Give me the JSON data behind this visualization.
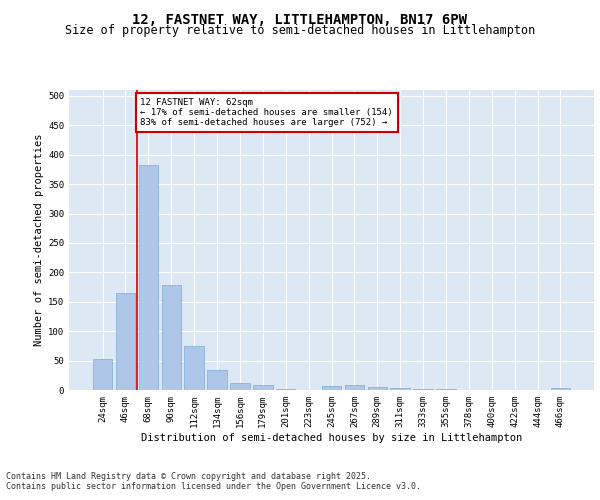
{
  "title": "12, FASTNET WAY, LITTLEHAMPTON, BN17 6PW",
  "subtitle": "Size of property relative to semi-detached houses in Littlehampton",
  "xlabel": "Distribution of semi-detached houses by size in Littlehampton",
  "ylabel": "Number of semi-detached properties",
  "categories": [
    "24sqm",
    "46sqm",
    "68sqm",
    "90sqm",
    "112sqm",
    "134sqm",
    "156sqm",
    "179sqm",
    "201sqm",
    "223sqm",
    "245sqm",
    "267sqm",
    "289sqm",
    "311sqm",
    "333sqm",
    "355sqm",
    "378sqm",
    "400sqm",
    "422sqm",
    "444sqm",
    "466sqm"
  ],
  "values": [
    52,
    165,
    383,
    178,
    75,
    34,
    12,
    8,
    2,
    0,
    7,
    8,
    5,
    4,
    2,
    1,
    0,
    0,
    0,
    0,
    3
  ],
  "bar_color": "#aec6e8",
  "bar_edge_color": "#7aadd4",
  "vline_color": "#cc0000",
  "vline_x": 1.5,
  "annotation_text": "12 FASTNET WAY: 62sqm\n← 17% of semi-detached houses are smaller (154)\n83% of semi-detached houses are larger (752) →",
  "annotation_box_color": "#ffffff",
  "annotation_box_edge": "#cc0000",
  "footer_line1": "Contains HM Land Registry data © Crown copyright and database right 2025.",
  "footer_line2": "Contains public sector information licensed under the Open Government Licence v3.0.",
  "ylim": [
    0,
    510
  ],
  "yticks": [
    0,
    50,
    100,
    150,
    200,
    250,
    300,
    350,
    400,
    450,
    500
  ],
  "plot_bg_color": "#dde8f5",
  "fig_bg_color": "#ffffff",
  "title_fontsize": 10,
  "subtitle_fontsize": 8.5,
  "tick_fontsize": 6.5,
  "ylabel_fontsize": 7.5,
  "xlabel_fontsize": 7.5,
  "annotation_fontsize": 6.5,
  "footer_fontsize": 6.0
}
